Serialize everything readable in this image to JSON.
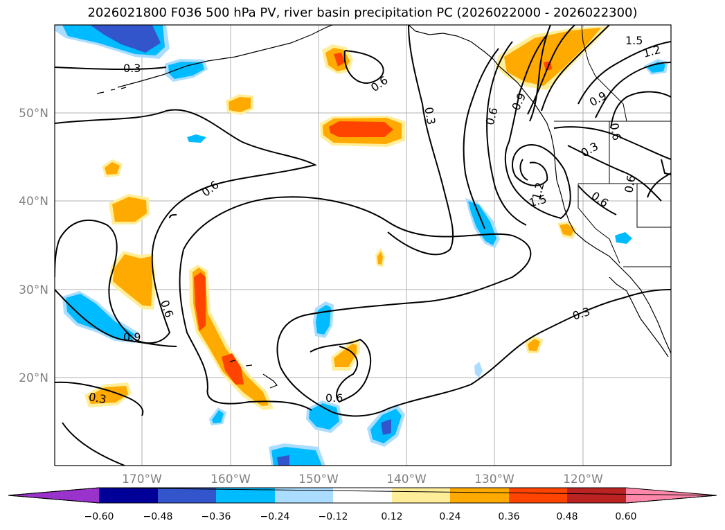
{
  "title": "2026021800 F036 500 hPa PV, river basin precipitation PC (2026022000 - 2026022300)",
  "lat_labels": [
    "50°N",
    "40°N",
    "30°N",
    "20°N"
  ],
  "lon_labels": [
    "170°W",
    "160°W",
    "150°W",
    "140°W",
    "130°W",
    "120°W"
  ],
  "contour_labels": [
    "0.3",
    "0.6",
    "0.3",
    "0.6",
    "0.6",
    "0.9",
    "0.3",
    "0.6",
    "0.6",
    "0.9",
    "1.2",
    "1.5",
    "0.3",
    "0.6",
    "0.3",
    "0.9",
    "1.2",
    "1.5",
    "0.6",
    "0.6",
    "0.3",
    "0.9"
  ],
  "colorbar": {
    "colors": [
      "#9933cc",
      "#000099",
      "#3355cc",
      "#00bbff",
      "#aaddff",
      "#ffffff",
      "#ffee99",
      "#ffaa00",
      "#ff4400",
      "#bb2222",
      "#ff88aa"
    ],
    "ticks": [
      "−0.60",
      "−0.48",
      "−0.36",
      "−0.24",
      "−0.12",
      "0.12",
      "0.24",
      "0.36",
      "0.48",
      "0.60"
    ]
  },
  "colors": {
    "pos_light": "#ffee99",
    "pos_mid": "#ffaa00",
    "pos_strong": "#ff4400",
    "neg_light": "#aaddff",
    "neg_mid": "#00bbff",
    "neg_strong": "#3355cc",
    "neg_darkest": "#000099",
    "grid": "#b0b0b0"
  }
}
